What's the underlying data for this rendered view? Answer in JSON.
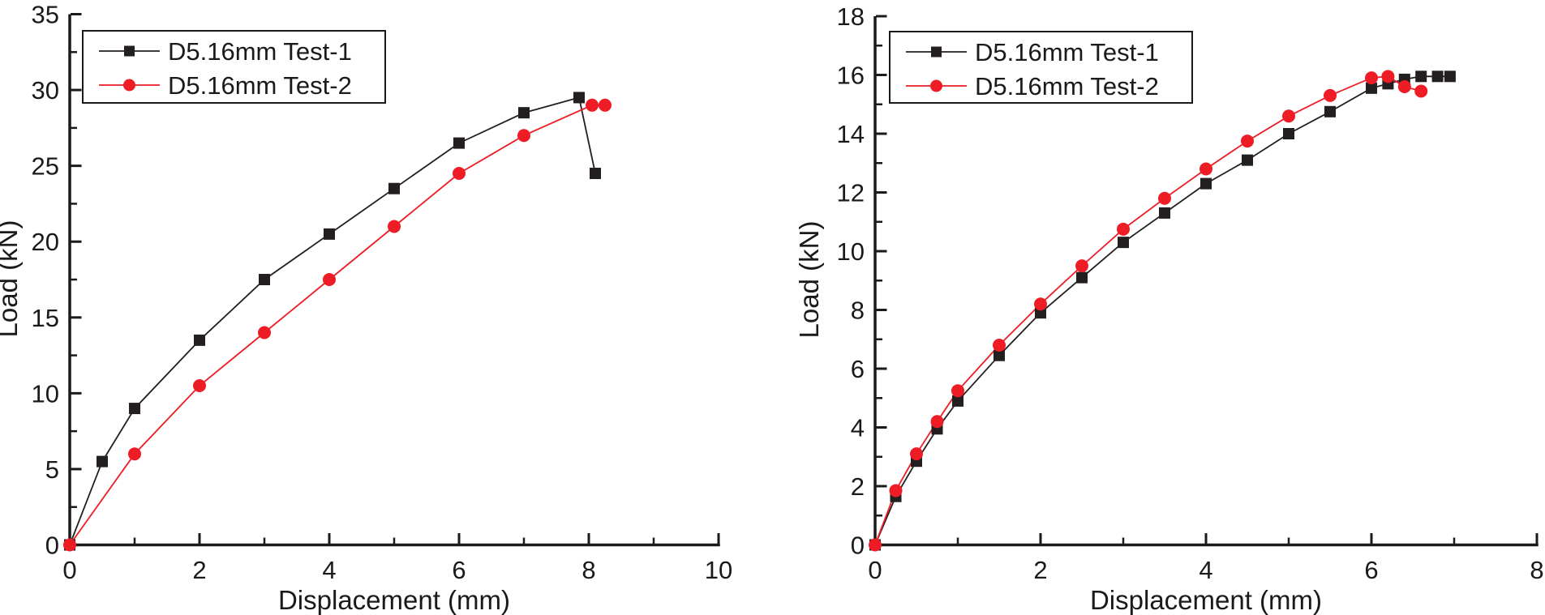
{
  "figure": {
    "background": "#ffffff",
    "axis_color": "#1a1a1a"
  },
  "chart_data": [
    {
      "type": "line",
      "title": "",
      "xlabel": "Displacement (mm)",
      "ylabel": "Load (kN)",
      "xlim": [
        0,
        10
      ],
      "ylim": [
        0,
        35
      ],
      "x_major_ticks": [
        0,
        2,
        4,
        6,
        8,
        10
      ],
      "x_minor_ticks": [
        1,
        3,
        5,
        7,
        9
      ],
      "y_major_ticks": [
        0,
        5,
        10,
        15,
        20,
        25,
        30,
        35
      ],
      "y_minor_ticks": [
        2.5,
        7.5,
        12.5,
        17.5,
        22.5,
        27.5,
        32.5
      ],
      "grid": false,
      "legend_position": "top-left-inside",
      "series": [
        {
          "name": "D5.16mm Test-1",
          "color": "#231f20",
          "marker": "square",
          "points": [
            [
              0,
              0
            ],
            [
              0.5,
              5.5
            ],
            [
              1,
              9
            ],
            [
              2,
              13.5
            ],
            [
              3,
              17.5
            ],
            [
              4,
              20.5
            ],
            [
              5,
              23.5
            ],
            [
              6,
              26.5
            ],
            [
              7,
              28.5
            ],
            [
              7.85,
              29.5
            ],
            [
              8.1,
              24.5
            ]
          ]
        },
        {
          "name": "D5.16mm Test-2",
          "color": "#ee1c25",
          "marker": "circle",
          "points": [
            [
              0,
              0
            ],
            [
              1,
              6
            ],
            [
              2,
              10.5
            ],
            [
              3,
              14
            ],
            [
              4,
              17.5
            ],
            [
              5,
              21
            ],
            [
              6,
              24.5
            ],
            [
              7,
              27
            ],
            [
              8.05,
              29
            ],
            [
              8.25,
              29
            ]
          ]
        }
      ]
    },
    {
      "type": "line",
      "title": "",
      "xlabel": "Displacement (mm)",
      "ylabel": "Load (kN)",
      "xlim": [
        0,
        8
      ],
      "ylim": [
        0,
        18
      ],
      "x_major_ticks": [
        0,
        2,
        4,
        6,
        8
      ],
      "x_minor_ticks": [
        1,
        3,
        5,
        7
      ],
      "y_major_ticks": [
        0,
        2,
        4,
        6,
        8,
        10,
        12,
        14,
        16,
        18
      ],
      "y_minor_ticks": [
        1,
        3,
        5,
        7,
        9,
        11,
        13,
        15,
        17
      ],
      "grid": false,
      "legend_position": "top-left-inside",
      "series": [
        {
          "name": "D5.16mm Test-1",
          "color": "#231f20",
          "marker": "square",
          "points": [
            [
              0,
              0
            ],
            [
              0.25,
              1.65
            ],
            [
              0.5,
              2.85
            ],
            [
              0.75,
              3.95
            ],
            [
              1,
              4.9
            ],
            [
              1.5,
              6.45
            ],
            [
              2,
              7.9
            ],
            [
              2.5,
              9.1
            ],
            [
              3,
              10.3
            ],
            [
              3.5,
              11.3
            ],
            [
              4,
              12.3
            ],
            [
              4.5,
              13.1
            ],
            [
              5,
              14.0
            ],
            [
              5.5,
              14.75
            ],
            [
              6,
              15.55
            ],
            [
              6.2,
              15.7
            ],
            [
              6.4,
              15.85
            ],
            [
              6.6,
              15.95
            ],
            [
              6.8,
              15.95
            ],
            [
              6.95,
              15.95
            ]
          ]
        },
        {
          "name": "D5.16mm Test-2",
          "color": "#ee1c25",
          "marker": "circle",
          "points": [
            [
              0,
              0
            ],
            [
              0.25,
              1.85
            ],
            [
              0.5,
              3.1
            ],
            [
              0.75,
              4.2
            ],
            [
              1,
              5.25
            ],
            [
              1.5,
              6.8
            ],
            [
              2,
              8.2
            ],
            [
              2.5,
              9.5
            ],
            [
              3,
              10.75
            ],
            [
              3.5,
              11.8
            ],
            [
              4,
              12.8
            ],
            [
              4.5,
              13.75
            ],
            [
              5,
              14.6
            ],
            [
              5.5,
              15.3
            ],
            [
              6,
              15.9
            ],
            [
              6.2,
              15.95
            ],
            [
              6.4,
              15.6
            ],
            [
              6.6,
              15.45
            ]
          ]
        }
      ]
    }
  ]
}
